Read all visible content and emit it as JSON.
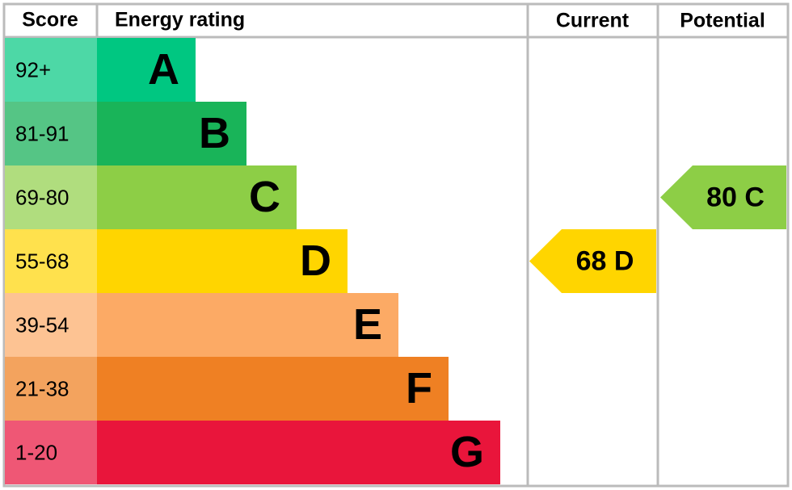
{
  "header": {
    "score": "Score",
    "energy_rating": "Energy rating",
    "current": "Current",
    "potential": "Potential"
  },
  "bands": [
    {
      "range": "92+",
      "letter": "A",
      "color": "#00c781",
      "light": "#4dd8a6"
    },
    {
      "range": "81-91",
      "letter": "B",
      "color": "#19b459",
      "light": "#55c585"
    },
    {
      "range": "69-80",
      "letter": "C",
      "color": "#8dce46",
      "light": "#b0dd7e"
    },
    {
      "range": "55-68",
      "letter": "D",
      "color": "#ffd500",
      "light": "#ffe14d"
    },
    {
      "range": "39-54",
      "letter": "E",
      "color": "#fcaa65",
      "light": "#fdc393"
    },
    {
      "range": "21-38",
      "letter": "F",
      "color": "#ef8023",
      "light": "#f3a35e"
    },
    {
      "range": "1-20",
      "letter": "G",
      "color": "#e9153b",
      "light": "#ef5775"
    }
  ],
  "current": {
    "score": 68,
    "letter": "D"
  },
  "potential": {
    "score": 80,
    "letter": "C"
  }
}
